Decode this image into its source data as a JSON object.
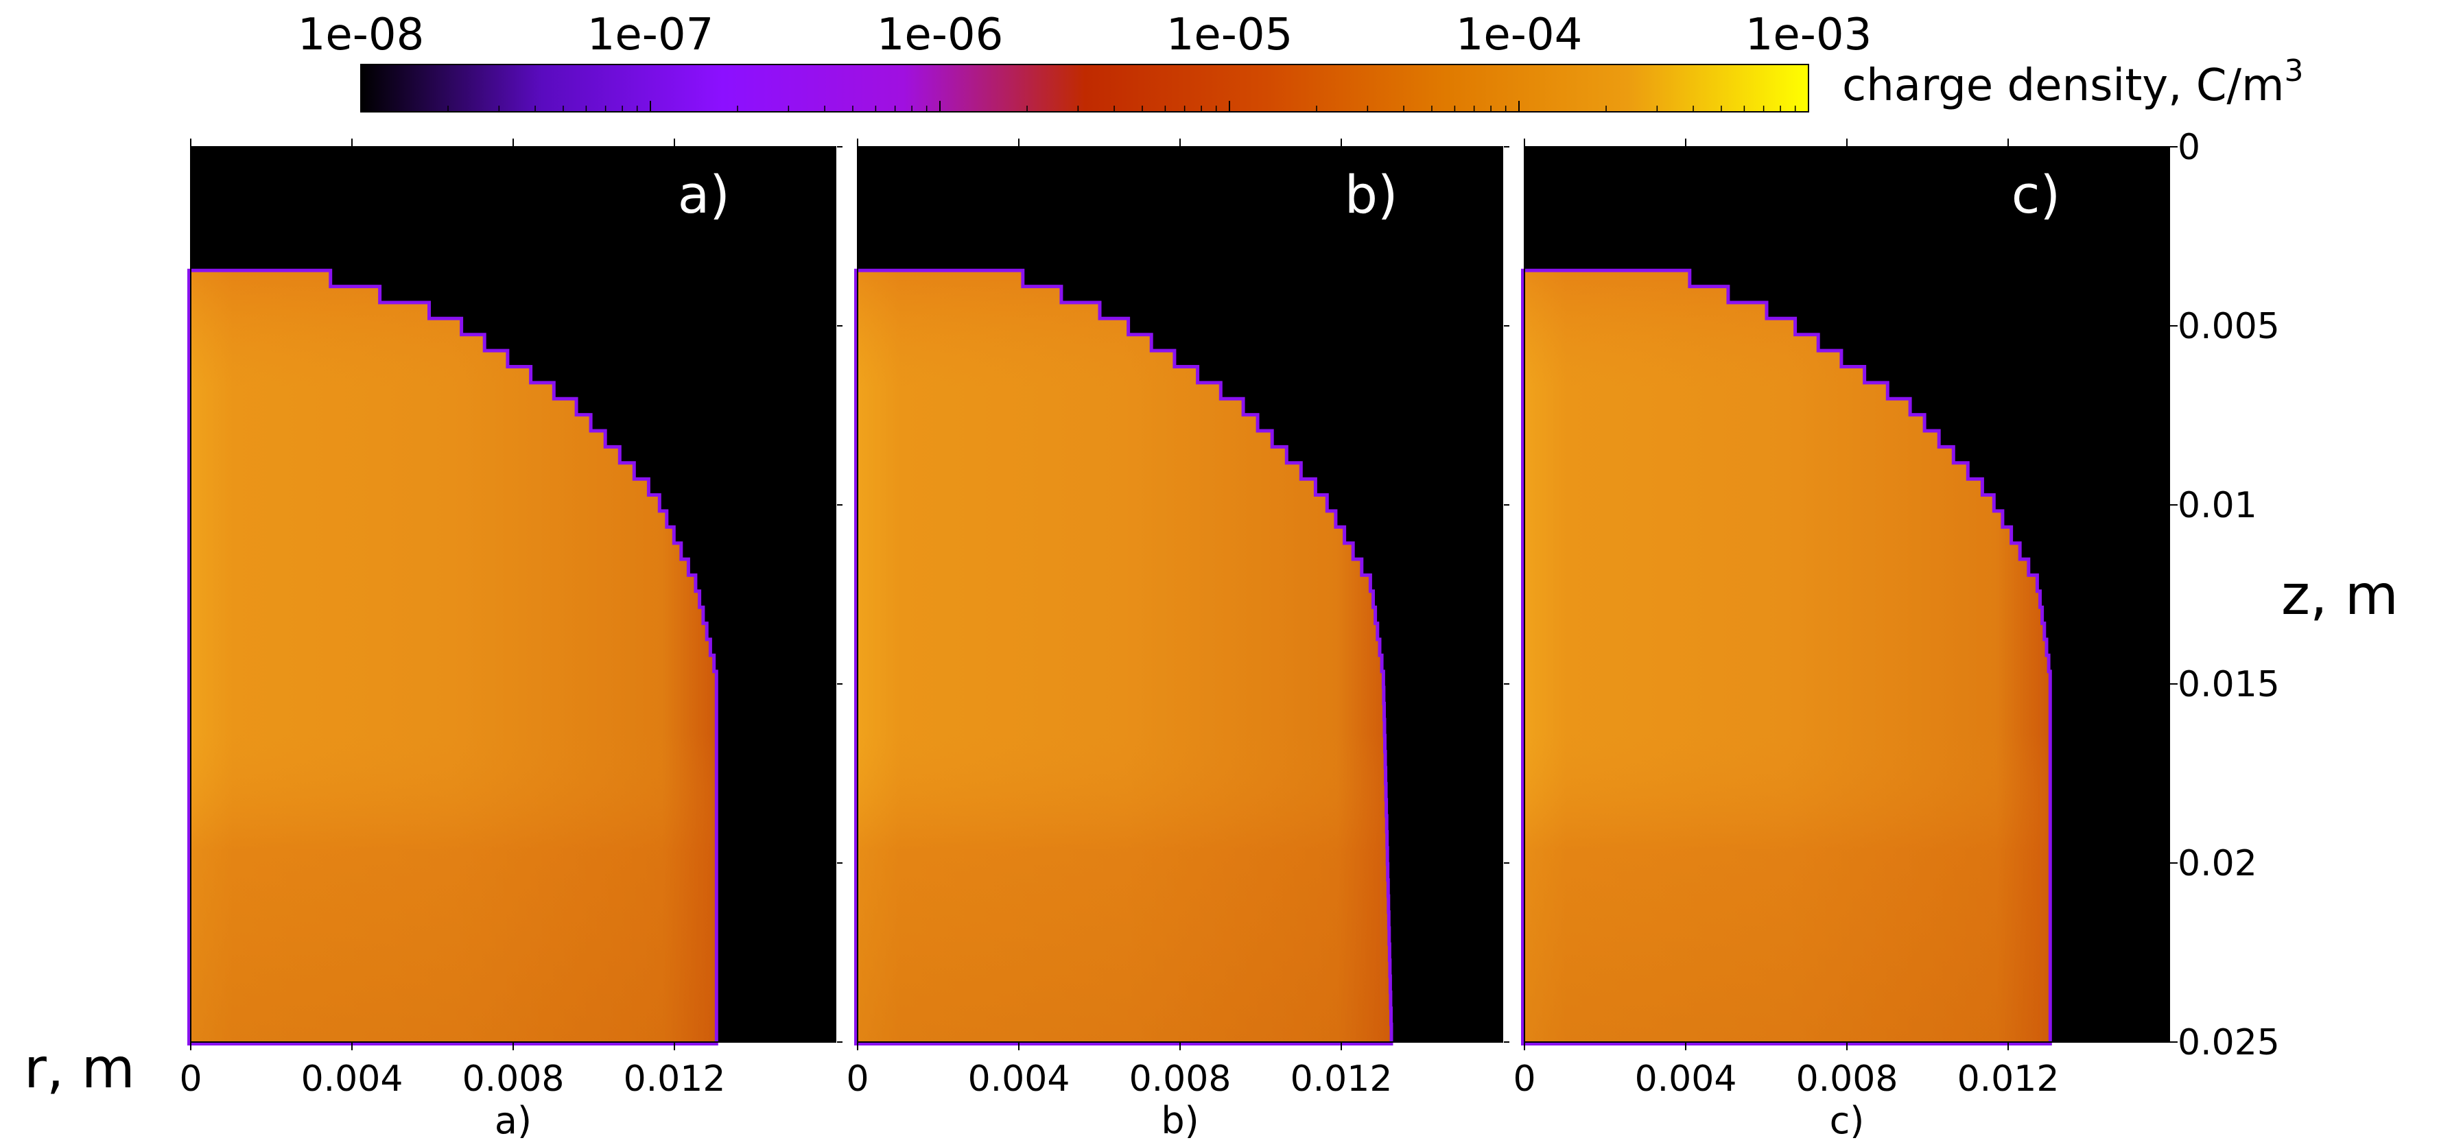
{
  "chart_data": {
    "type": "heatmap",
    "colorbar": {
      "label_main": "charge density, C/m",
      "label_sup": "3",
      "scale": "log",
      "range": [
        1e-08,
        0.001
      ],
      "ticks": [
        "1e-08",
        "1e-07",
        "1e-06",
        "1e-05",
        "1e-04",
        "1e-03"
      ],
      "colormap": "gnuplot",
      "colors": [
        "#000000",
        "#5a0bbf",
        "#8c10ff",
        "#a010e0",
        "#c02a00",
        "#d24a00",
        "#e07a00",
        "#ec9c10",
        "#ffff00"
      ]
    },
    "x_axis": {
      "label": "r, m",
      "ticks": [
        "0",
        "0.004",
        "0.008",
        "0.012"
      ],
      "range": [
        0,
        0.016
      ]
    },
    "y_axis": {
      "label": "z, m",
      "ticks": [
        "0",
        "0.005",
        "0.01",
        "0.015",
        "0.02",
        "0.025"
      ],
      "range": [
        0,
        0.025
      ],
      "inverted": true,
      "position": "right"
    },
    "panels": [
      {
        "label": "a)",
        "caption": "a)",
        "region_top_z": 0.0035,
        "region_edge_r": [
          [
            0.0035,
            0.0022
          ],
          [
            0.005,
            0.0063
          ],
          [
            0.0075,
            0.0095
          ],
          [
            0.01,
            0.0115
          ],
          [
            0.0125,
            0.0125
          ],
          [
            0.015,
            0.013
          ],
          [
            0.025,
            0.013
          ]
        ],
        "typical_density": 0.0004
      },
      {
        "label": "b)",
        "caption": "b)",
        "region_top_z": 0.0035,
        "region_edge_r": [
          [
            0.0035,
            0.0031
          ],
          [
            0.005,
            0.0063
          ],
          [
            0.0075,
            0.0095
          ],
          [
            0.01,
            0.0115
          ],
          [
            0.0125,
            0.0127
          ],
          [
            0.015,
            0.013
          ],
          [
            0.025,
            0.0132
          ]
        ],
        "typical_density": 0.0004
      },
      {
        "label": "c)",
        "caption": "c)",
        "region_top_z": 0.0035,
        "region_edge_r": [
          [
            0.0035,
            0.0031
          ],
          [
            0.005,
            0.0063
          ],
          [
            0.0075,
            0.0095
          ],
          [
            0.01,
            0.0115
          ],
          [
            0.0125,
            0.0127
          ],
          [
            0.015,
            0.013
          ],
          [
            0.025,
            0.013
          ]
        ],
        "typical_density": 0.0004
      }
    ]
  }
}
